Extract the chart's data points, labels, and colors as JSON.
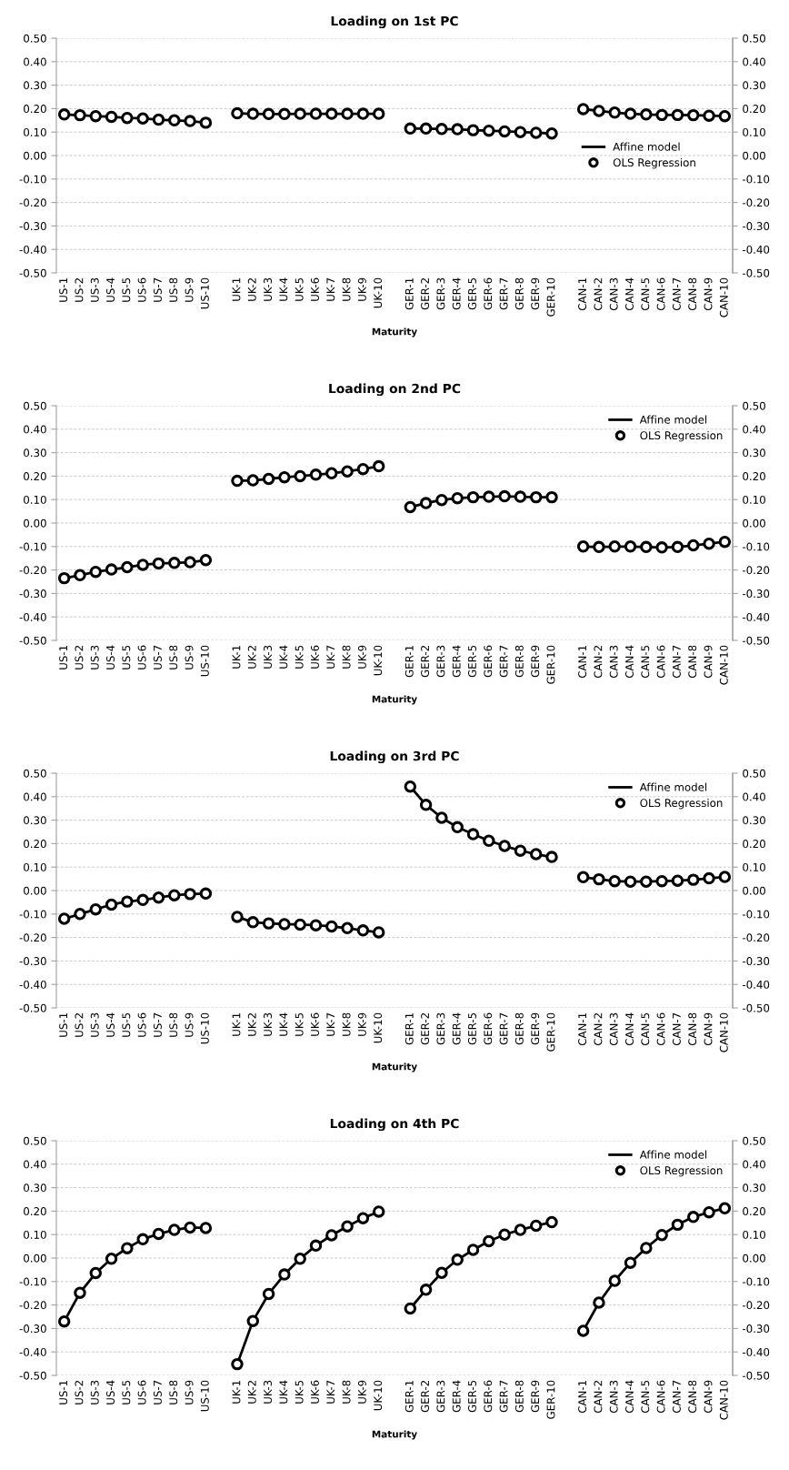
{
  "chart_data": [
    {
      "type": "line",
      "title": "Loading on 1st PC",
      "xlabel": "Maturity",
      "categories": [
        "US-1",
        "US-2",
        "US-3",
        "US-4",
        "US-5",
        "US-6",
        "US-7",
        "US-8",
        "US-9",
        "US-10",
        null,
        "UK-1",
        "UK-2",
        "UK-3",
        "UK-4",
        "UK-5",
        "UK-6",
        "UK-7",
        "UK-8",
        "UK-9",
        "UK-10",
        null,
        "GER-1",
        "GER-2",
        "GER-3",
        "GER-4",
        "GER-5",
        "GER-6",
        "GER-7",
        "GER-8",
        "GER-9",
        "GER-10",
        null,
        "CAN-1",
        "CAN-2",
        "CAN-3",
        "CAN-4",
        "CAN-5",
        "CAN-6",
        "CAN-7",
        "CAN-8",
        "CAN-9",
        "CAN-10"
      ],
      "series": [
        {
          "name": "Affine model",
          "type": "line",
          "marker": "none",
          "color": "#000000",
          "values": [
            0.175,
            0.172,
            0.168,
            0.165,
            0.16,
            0.158,
            0.153,
            0.15,
            0.147,
            0.14,
            null,
            0.18,
            0.178,
            0.177,
            0.177,
            0.178,
            0.178,
            0.178,
            0.178,
            0.178,
            0.178,
            null,
            0.115,
            0.115,
            0.113,
            0.112,
            0.108,
            0.106,
            0.103,
            0.1,
            0.097,
            0.094,
            null,
            0.198,
            0.19,
            0.183,
            0.178,
            0.175,
            0.173,
            0.173,
            0.172,
            0.17,
            0.168
          ]
        },
        {
          "name": "OLS Regression",
          "type": "scatter",
          "marker": "circle",
          "color": "#000000",
          "values": [
            0.175,
            0.172,
            0.168,
            0.165,
            0.16,
            0.158,
            0.153,
            0.15,
            0.147,
            0.14,
            null,
            0.18,
            0.178,
            0.177,
            0.177,
            0.178,
            0.178,
            0.178,
            0.178,
            0.178,
            0.178,
            null,
            0.115,
            0.115,
            0.113,
            0.112,
            0.108,
            0.106,
            0.103,
            0.1,
            0.097,
            0.094,
            null,
            0.198,
            0.19,
            0.183,
            0.178,
            0.175,
            0.173,
            0.173,
            0.172,
            0.17,
            0.168
          ]
        }
      ],
      "ylim": [
        -0.5,
        0.5
      ],
      "yticks": [
        {
          "value": -0.5,
          "label": "-0.50"
        },
        {
          "value": -0.4,
          "label": "-0.40"
        },
        {
          "value": -0.3,
          "label": "-0.30"
        },
        {
          "value": -0.2,
          "label": "-0.20"
        },
        {
          "value": -0.1,
          "label": "-0.10"
        },
        {
          "value": 0,
          "label": "0.00"
        },
        {
          "value": 0.1,
          "label": "0.10"
        },
        {
          "value": 0.2,
          "label": "0.20"
        },
        {
          "value": 0.3,
          "label": "0.30"
        },
        {
          "value": 0.4,
          "label": "0.40"
        },
        {
          "value": 0.5,
          "label": "0.50"
        }
      ],
      "y2lim": [
        -0.5,
        0.5
      ],
      "y2ticks": [
        {
          "value": -0.5,
          "label": "-0.50"
        },
        {
          "value": -0.4,
          "label": "-0.40"
        },
        {
          "value": -0.3,
          "label": "-0.30"
        },
        {
          "value": -0.2,
          "label": "-0.20"
        },
        {
          "value": -0.1,
          "label": "-0.10"
        },
        {
          "value": 0,
          "label": "0.00"
        },
        {
          "value": 0.1,
          "label": "0.10"
        },
        {
          "value": 0.2,
          "label": "0.20"
        },
        {
          "value": 0.3,
          "label": "0.30"
        },
        {
          "value": 0.4,
          "label": "0.40"
        },
        {
          "value": 0.5,
          "label": "0.50"
        }
      ],
      "grid": "y",
      "legend": "right"
    },
    {
      "type": "line",
      "title": "Loading on 2nd PC",
      "xlabel": "Maturity",
      "categories": [
        "US-1",
        "US-2",
        "US-3",
        "US-4",
        "US-5",
        "US-6",
        "US-7",
        "US-8",
        "US-9",
        "US-10",
        null,
        "UK-1",
        "UK-2",
        "UK-3",
        "UK-4",
        "UK-5",
        "UK-6",
        "UK-7",
        "UK-8",
        "UK-9",
        "UK-10",
        null,
        "GER-1",
        "GER-2",
        "GER-3",
        "GER-4",
        "GER-5",
        "GER-6",
        "GER-7",
        "GER-8",
        "GER-9",
        "GER-10",
        null,
        "CAN-1",
        "CAN-2",
        "CAN-3",
        "CAN-4",
        "CAN-5",
        "CAN-6",
        "CAN-7",
        "CAN-8",
        "CAN-9",
        "CAN-10"
      ],
      "series": [
        {
          "name": "Affine model",
          "type": "line",
          "marker": "none",
          "color": "#000000",
          "values": [
            -0.235,
            -0.222,
            -0.208,
            -0.198,
            -0.188,
            -0.178,
            -0.172,
            -0.17,
            -0.167,
            -0.158,
            null,
            0.18,
            0.182,
            0.188,
            0.195,
            0.2,
            0.206,
            0.212,
            0.22,
            0.23,
            0.242,
            null,
            0.068,
            0.085,
            0.098,
            0.106,
            0.11,
            0.112,
            0.114,
            0.112,
            0.11,
            0.11,
            null,
            -0.1,
            -0.102,
            -0.1,
            -0.1,
            -0.102,
            -0.104,
            -0.102,
            -0.095,
            -0.088,
            -0.08
          ]
        },
        {
          "name": "OLS Regression",
          "type": "scatter",
          "marker": "circle",
          "color": "#000000",
          "values": [
            -0.235,
            -0.222,
            -0.208,
            -0.198,
            -0.188,
            -0.178,
            -0.172,
            -0.17,
            -0.167,
            -0.158,
            null,
            0.18,
            0.182,
            0.188,
            0.195,
            0.2,
            0.206,
            0.212,
            0.22,
            0.23,
            0.242,
            null,
            0.068,
            0.085,
            0.098,
            0.106,
            0.11,
            0.112,
            0.114,
            0.112,
            0.11,
            0.11,
            null,
            -0.1,
            -0.102,
            -0.1,
            -0.1,
            -0.102,
            -0.104,
            -0.102,
            -0.095,
            -0.088,
            -0.08
          ]
        }
      ],
      "ylim": [
        -0.5,
        0.5
      ],
      "yticks": [
        {
          "value": -0.5,
          "label": "-0.50"
        },
        {
          "value": -0.4,
          "label": "-0.40"
        },
        {
          "value": -0.3,
          "label": "-0.30"
        },
        {
          "value": -0.2,
          "label": "-0.20"
        },
        {
          "value": -0.1,
          "label": "-0.10"
        },
        {
          "value": 0,
          "label": "0.00"
        },
        {
          "value": 0.1,
          "label": "0.10"
        },
        {
          "value": 0.2,
          "label": "0.20"
        },
        {
          "value": 0.3,
          "label": "0.30"
        },
        {
          "value": 0.4,
          "label": "0.40"
        },
        {
          "value": 0.5,
          "label": "0.50"
        }
      ],
      "y2lim": [
        -0.5,
        0.5
      ],
      "y2ticks": [
        {
          "value": -0.5,
          "label": "-0.50"
        },
        {
          "value": -0.4,
          "label": "-0.40"
        },
        {
          "value": -0.3,
          "label": "-0.30"
        },
        {
          "value": -0.2,
          "label": "-0.20"
        },
        {
          "value": -0.1,
          "label": "-0.10"
        },
        {
          "value": 0,
          "label": "0.00"
        },
        {
          "value": 0.1,
          "label": "0.10"
        },
        {
          "value": 0.2,
          "label": "0.20"
        },
        {
          "value": 0.3,
          "label": "0.30"
        },
        {
          "value": 0.4,
          "label": "0.40"
        },
        {
          "value": 0.5,
          "label": "0.50"
        }
      ],
      "grid": "y",
      "legend": "top right"
    },
    {
      "type": "line",
      "title": "Loading on 3rd PC",
      "xlabel": "Maturity",
      "categories": [
        "US-1",
        "US-2",
        "US-3",
        "US-4",
        "US-5",
        "US-6",
        "US-7",
        "US-8",
        "US-9",
        "US-10",
        null,
        "UK-1",
        "UK-2",
        "UK-3",
        "UK-4",
        "UK-5",
        "UK-6",
        "UK-7",
        "UK-8",
        "UK-9",
        "UK-10",
        null,
        "GER-1",
        "GER-2",
        "GER-3",
        "GER-4",
        "GER-5",
        "GER-6",
        "GER-7",
        "GER-8",
        "GER-9",
        "GER-10",
        null,
        "CAN-1",
        "CAN-2",
        "CAN-3",
        "CAN-4",
        "CAN-5",
        "CAN-6",
        "CAN-7",
        "CAN-8",
        "CAN-9",
        "CAN-10"
      ],
      "series": [
        {
          "name": "Affine model",
          "type": "line",
          "marker": "none",
          "color": "#000000",
          "values": [
            -0.12,
            -0.1,
            -0.08,
            -0.06,
            -0.047,
            -0.04,
            -0.03,
            -0.02,
            -0.015,
            -0.013,
            null,
            -0.112,
            -0.135,
            -0.14,
            -0.143,
            -0.145,
            -0.148,
            -0.153,
            -0.16,
            -0.17,
            -0.178,
            null,
            0.443,
            0.365,
            0.31,
            0.27,
            0.24,
            0.212,
            0.19,
            0.17,
            0.155,
            0.143,
            null,
            0.057,
            0.048,
            0.04,
            0.038,
            0.038,
            0.04,
            0.042,
            0.046,
            0.052,
            0.058
          ]
        },
        {
          "name": "OLS Regression",
          "type": "scatter",
          "marker": "circle",
          "color": "#000000",
          "values": [
            -0.12,
            -0.1,
            -0.08,
            -0.06,
            -0.047,
            -0.04,
            -0.03,
            -0.02,
            -0.015,
            -0.013,
            null,
            -0.112,
            -0.135,
            -0.14,
            -0.143,
            -0.145,
            -0.148,
            -0.153,
            -0.16,
            -0.17,
            -0.178,
            null,
            0.443,
            0.365,
            0.31,
            0.27,
            0.24,
            0.212,
            0.19,
            0.17,
            0.155,
            0.143,
            null,
            0.057,
            0.048,
            0.04,
            0.038,
            0.038,
            0.04,
            0.042,
            0.046,
            0.052,
            0.058
          ]
        }
      ],
      "ylim": [
        -0.5,
        0.5
      ],
      "yticks": [
        {
          "value": -0.5,
          "label": "-0.50"
        },
        {
          "value": -0.4,
          "label": "-0.40"
        },
        {
          "value": -0.3,
          "label": "-0.30"
        },
        {
          "value": -0.2,
          "label": "-0.20"
        },
        {
          "value": -0.1,
          "label": "-0.10"
        },
        {
          "value": 0,
          "label": "0.00"
        },
        {
          "value": 0.1,
          "label": "0.10"
        },
        {
          "value": 0.2,
          "label": "0.20"
        },
        {
          "value": 0.3,
          "label": "0.30"
        },
        {
          "value": 0.4,
          "label": "0.40"
        },
        {
          "value": 0.5,
          "label": "0.50"
        }
      ],
      "y2lim": [
        -0.5,
        0.5
      ],
      "y2ticks": [
        {
          "value": -0.5,
          "label": "-0.50"
        },
        {
          "value": -0.4,
          "label": "-0.40"
        },
        {
          "value": -0.3,
          "label": "-0.30"
        },
        {
          "value": -0.2,
          "label": "-0.20"
        },
        {
          "value": -0.1,
          "label": "-0.10"
        },
        {
          "value": 0,
          "label": "0.00"
        },
        {
          "value": 0.1,
          "label": "0.10"
        },
        {
          "value": 0.2,
          "label": "0.20"
        },
        {
          "value": 0.3,
          "label": "0.30"
        },
        {
          "value": 0.4,
          "label": "0.40"
        },
        {
          "value": 0.5,
          "label": "0.50"
        }
      ],
      "grid": "y",
      "legend": "top right"
    },
    {
      "type": "line",
      "title": "Loading on 4th PC",
      "xlabel": "Maturity",
      "categories": [
        "US-1",
        "US-2",
        "US-3",
        "US-4",
        "US-5",
        "US-6",
        "US-7",
        "US-8",
        "US-9",
        "US-10",
        null,
        "UK-1",
        "UK-2",
        "UK-3",
        "UK-4",
        "UK-5",
        "UK-6",
        "UK-7",
        "UK-8",
        "UK-9",
        "UK-10",
        null,
        "GER-1",
        "GER-2",
        "GER-3",
        "GER-4",
        "GER-5",
        "GER-6",
        "GER-7",
        "GER-8",
        "GER-9",
        "GER-10",
        null,
        "CAN-1",
        "CAN-2",
        "CAN-3",
        "CAN-4",
        "CAN-5",
        "CAN-6",
        "CAN-7",
        "CAN-8",
        "CAN-9",
        "CAN-10"
      ],
      "series": [
        {
          "name": "Affine model",
          "type": "line",
          "marker": "none",
          "color": "#000000",
          "values": [
            -0.27,
            -0.148,
            -0.064,
            -0.003,
            0.042,
            0.08,
            0.103,
            0.12,
            0.13,
            0.128,
            null,
            -0.452,
            -0.268,
            -0.153,
            -0.07,
            -0.003,
            0.053,
            0.097,
            0.135,
            0.17,
            0.198,
            null,
            -0.215,
            -0.135,
            -0.063,
            -0.007,
            0.035,
            0.072,
            0.1,
            0.12,
            0.138,
            0.153,
            null,
            -0.31,
            -0.19,
            -0.097,
            -0.02,
            0.043,
            0.098,
            0.142,
            0.175,
            0.195,
            0.212
          ]
        },
        {
          "name": "OLS Regression",
          "type": "scatter",
          "marker": "circle",
          "color": "#000000",
          "values": [
            -0.27,
            -0.148,
            -0.064,
            -0.003,
            0.042,
            0.08,
            0.103,
            0.12,
            0.13,
            0.128,
            null,
            -0.452,
            -0.268,
            -0.153,
            -0.07,
            -0.003,
            0.053,
            0.097,
            0.135,
            0.17,
            0.198,
            null,
            -0.215,
            -0.135,
            -0.063,
            -0.007,
            0.035,
            0.072,
            0.1,
            0.12,
            0.138,
            0.153,
            null,
            -0.31,
            -0.19,
            -0.097,
            -0.02,
            0.043,
            0.098,
            0.142,
            0.175,
            0.195,
            0.212
          ]
        }
      ],
      "ylim": [
        -0.5,
        0.5
      ],
      "yticks": [
        {
          "value": -0.5,
          "label": "-0.50"
        },
        {
          "value": -0.4,
          "label": "-0.40"
        },
        {
          "value": -0.3,
          "label": "-0.30"
        },
        {
          "value": -0.2,
          "label": "-0.20"
        },
        {
          "value": -0.1,
          "label": "-0.10"
        },
        {
          "value": 0,
          "label": "0.00"
        },
        {
          "value": 0.1,
          "label": "0.10"
        },
        {
          "value": 0.2,
          "label": "0.20"
        },
        {
          "value": 0.3,
          "label": "0.30"
        },
        {
          "value": 0.4,
          "label": "0.40"
        },
        {
          "value": 0.5,
          "label": "0.50"
        }
      ],
      "y2lim": [
        -0.5,
        0.5
      ],
      "y2ticks": [
        {
          "value": -0.5,
          "label": "-0.50"
        },
        {
          "value": -0.4,
          "label": "-0.40"
        },
        {
          "value": -0.3,
          "label": "-0.30"
        },
        {
          "value": -0.2,
          "label": "-0.20"
        },
        {
          "value": -0.1,
          "label": "-0.10"
        },
        {
          "value": 0,
          "label": "0.00"
        },
        {
          "value": 0.1,
          "label": "0.10"
        },
        {
          "value": 0.2,
          "label": "0.20"
        },
        {
          "value": 0.3,
          "label": "0.30"
        },
        {
          "value": 0.4,
          "label": "0.40"
        },
        {
          "value": 0.5,
          "label": "0.50"
        }
      ],
      "grid": "y",
      "legend": "top right"
    }
  ]
}
